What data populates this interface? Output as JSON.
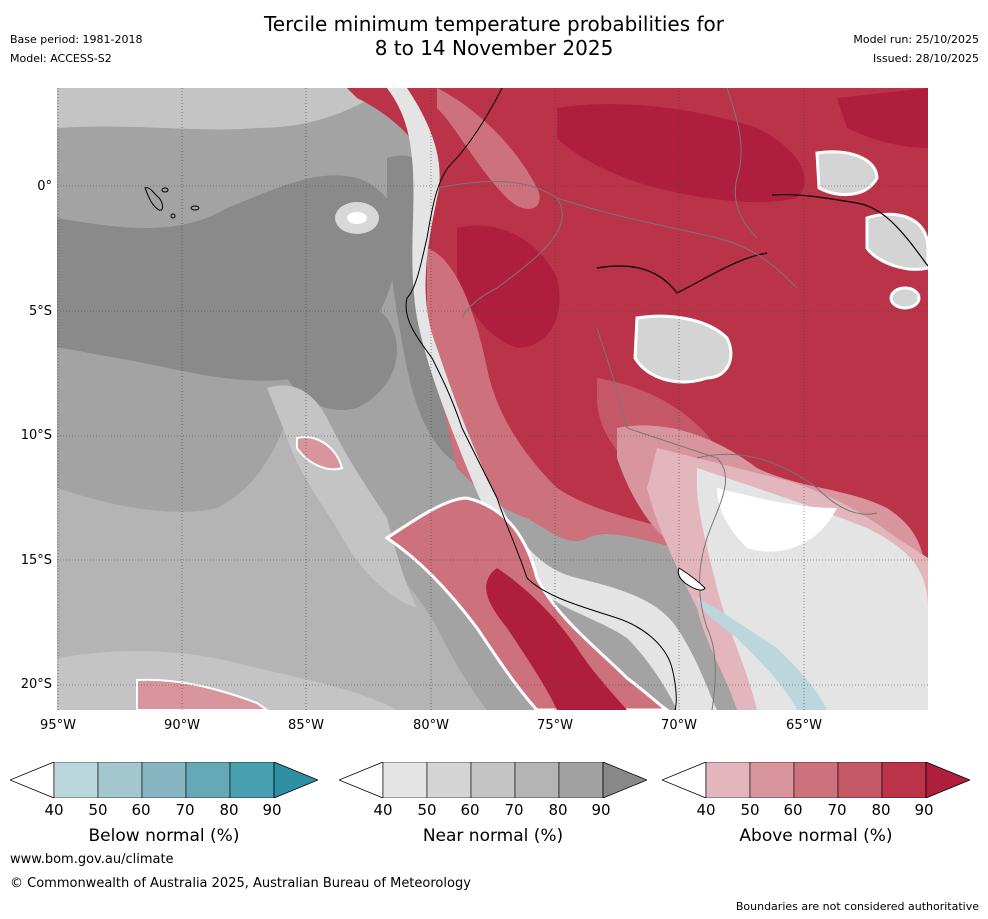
{
  "header": {
    "title_line1": "Tercile minimum temperature probabilities for",
    "title_line2": "8 to 14 November 2025",
    "base_period": "Base period: 1981-2018",
    "model": "Model: ACCESS-S2",
    "model_run": "Model run: 25/10/2025",
    "issued": "Issued: 28/10/2025"
  },
  "map": {
    "lat_labels": [
      "0°",
      "5°S",
      "10°S",
      "15°S",
      "20°S"
    ],
    "lon_labels": [
      "95°W",
      "90°W",
      "85°W",
      "80°W",
      "75°W",
      "70°W",
      "65°W"
    ]
  },
  "colorbars": [
    {
      "id": "below",
      "title": "Below normal (%)",
      "ticks": [
        "40",
        "50",
        "60",
        "70",
        "80",
        "90"
      ],
      "colors": [
        "#ffffff",
        "#bcd7dc",
        "#a4c7cf",
        "#86b6c2",
        "#66a9b6",
        "#46a0b0",
        "#2e8fa2"
      ]
    },
    {
      "id": "near",
      "title": "Near normal (%)",
      "ticks": [
        "40",
        "50",
        "60",
        "70",
        "80",
        "90"
      ],
      "colors": [
        "#ffffff",
        "#e4e4e4",
        "#d4d4d4",
        "#c4c4c4",
        "#b4b4b4",
        "#a2a2a2",
        "#888888"
      ]
    },
    {
      "id": "above",
      "title": "Above normal (%)",
      "ticks": [
        "40",
        "50",
        "60",
        "70",
        "80",
        "90"
      ],
      "colors": [
        "#ffffff",
        "#e2b6bc",
        "#d8959d",
        "#cd727d",
        "#c55866",
        "#bb3348",
        "#b01e3e"
      ]
    }
  ],
  "footer": {
    "url": "www.bom.gov.au/climate",
    "copyright": "© Commonwealth of Australia 2025, Australian Bureau of Meteorology",
    "disclaimer": "Boundaries are not considered authoritative"
  }
}
